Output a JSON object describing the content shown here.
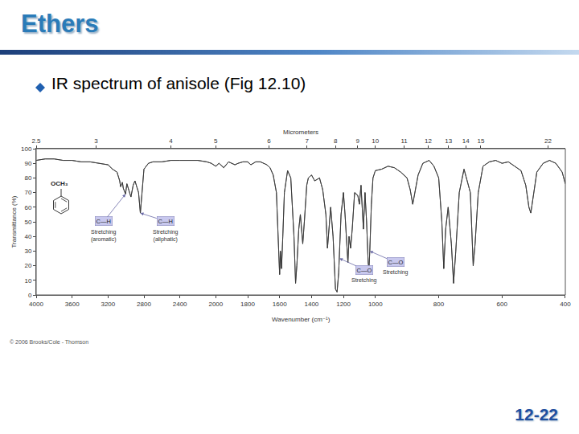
{
  "slide": {
    "title": "Ethers",
    "bullet": "IR spectrum of anisole (Fig 12.10)",
    "page_number": "12-22",
    "credit": "© 2006 Brooks/Cole - Thomson"
  },
  "chart_data": {
    "type": "line",
    "xlabel": "Wavenumber (cm⁻¹)",
    "x2label": "Micrometers",
    "ylabel": "Transmittance (%)",
    "structure_label": "OCH₃",
    "xlim": [
      [
        4000,
        2000
      ],
      [
        2000,
        1000
      ],
      [
        1000,
        400
      ]
    ],
    "xticks": [
      4000,
      3600,
      3200,
      2800,
      2400,
      2000,
      1800,
      1600,
      1400,
      1200,
      1000,
      800,
      600,
      400
    ],
    "x2ticks": [
      {
        "value": 4000,
        "label": "2.5"
      },
      {
        "value": 3333.3,
        "label": "3"
      },
      {
        "value": 2500,
        "label": "4"
      },
      {
        "value": 2000,
        "label": "5"
      },
      {
        "value": 1666.7,
        "label": "6"
      },
      {
        "value": 1428.6,
        "label": "7"
      },
      {
        "value": 1250,
        "label": "8"
      },
      {
        "value": 1111.1,
        "label": "9"
      },
      {
        "value": 1000,
        "label": "10"
      },
      {
        "value": 909.1,
        "label": "11"
      },
      {
        "value": 833.3,
        "label": "12"
      },
      {
        "value": 769.2,
        "label": "13"
      },
      {
        "value": 714.3,
        "label": "14"
      },
      {
        "value": 666.7,
        "label": "15"
      },
      {
        "value": 454.5,
        "label": "22"
      }
    ],
    "ylim": [
      0,
      100
    ],
    "yticks": [
      0,
      10,
      20,
      30,
      40,
      50,
      60,
      70,
      80,
      90,
      100
    ],
    "grid": false,
    "color": "#3a3a3a",
    "x": [
      4000,
      3900,
      3800,
      3700,
      3600,
      3500,
      3400,
      3300,
      3200,
      3150,
      3100,
      3070,
      3060,
      3040,
      3030,
      3005,
      2990,
      2960,
      2945,
      2920,
      2900,
      2880,
      2860,
      2840,
      2820,
      2800,
      2750,
      2700,
      2600,
      2500,
      2400,
      2300,
      2200,
      2100,
      2050,
      2000,
      1980,
      1950,
      1920,
      1880,
      1860,
      1830,
      1800,
      1780,
      1750,
      1720,
      1700,
      1680,
      1660,
      1640,
      1620,
      1610,
      1600,
      1595,
      1588,
      1580,
      1570,
      1550,
      1530,
      1510,
      1500,
      1492,
      1480,
      1470,
      1460,
      1455,
      1445,
      1430,
      1420,
      1400,
      1380,
      1350,
      1330,
      1310,
      1300,
      1290,
      1280,
      1265,
      1250,
      1240,
      1230,
      1215,
      1200,
      1190,
      1180,
      1172,
      1165,
      1155,
      1145,
      1130,
      1110,
      1100,
      1090,
      1080,
      1075,
      1065,
      1055,
      1045,
      1040,
      1035,
      1025,
      1015,
      1000,
      980,
      960,
      940,
      920,
      900,
      890,
      882,
      875,
      865,
      850,
      830,
      815,
      800,
      790,
      784,
      778,
      770,
      760,
      753,
      746,
      735,
      720,
      700,
      691,
      685,
      675,
      660,
      640,
      620,
      600,
      580,
      560,
      540,
      525,
      515,
      509,
      503,
      490,
      470,
      450,
      430,
      410,
      400
    ],
    "values": [
      92,
      93,
      93,
      92,
      92,
      91,
      91,
      90,
      89,
      86,
      84,
      78,
      74,
      77,
      73,
      69,
      76,
      70,
      67,
      75,
      78,
      74,
      70,
      56,
      72,
      86,
      90,
      91,
      91,
      92,
      92,
      92,
      92,
      91,
      90,
      88,
      90,
      87,
      91,
      89,
      90,
      91,
      91,
      89,
      91,
      91,
      90,
      89,
      87,
      82,
      70,
      40,
      14,
      30,
      18,
      40,
      70,
      85,
      80,
      40,
      8,
      20,
      45,
      55,
      38,
      35,
      50,
      75,
      80,
      82,
      78,
      80,
      72,
      55,
      32,
      45,
      60,
      40,
      4,
      2,
      15,
      55,
      70,
      55,
      35,
      22,
      40,
      32,
      45,
      70,
      68,
      62,
      75,
      55,
      45,
      70,
      50,
      22,
      18,
      30,
      62,
      80,
      85,
      86,
      88,
      87,
      84,
      80,
      72,
      62,
      70,
      82,
      90,
      92,
      88,
      80,
      50,
      18,
      45,
      60,
      35,
      8,
      30,
      70,
      86,
      70,
      20,
      35,
      70,
      88,
      91,
      92,
      90,
      91,
      88,
      85,
      75,
      60,
      56,
      65,
      84,
      90,
      92,
      90,
      84,
      76
    ],
    "annotations": [
      {
        "label": "C—H",
        "caption": [
          "Stretching",
          "(aromatic)"
        ],
        "x": 3005,
        "y": 69
      },
      {
        "label": "C—H",
        "caption": [
          "Stretching",
          "(aliphatic)"
        ],
        "x": 2840,
        "y": 56
      },
      {
        "label": "C—O",
        "caption": [
          "Stretching"
        ],
        "x": 1035,
        "y": 30
      },
      {
        "label": "C—O",
        "caption": [
          "Stretching"
        ],
        "x": 1225,
        "y": 25
      }
    ]
  }
}
